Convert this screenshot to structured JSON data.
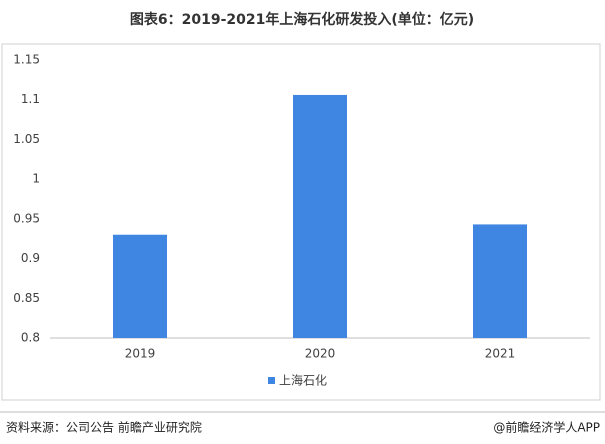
{
  "chart_data": {
    "type": "bar",
    "title": "图表6：2019-2021年上海石化研发投入(单位：亿元)",
    "categories": [
      "2019",
      "2020",
      "2021"
    ],
    "series": [
      {
        "name": "上海石化",
        "color": "#3f86e3",
        "values": [
          0.93,
          1.106,
          0.943
        ]
      }
    ],
    "ylim": [
      0.8,
      1.15
    ],
    "yticks": [
      0.8,
      0.85,
      0.9,
      0.95,
      1,
      1.05,
      1.1,
      1.15
    ],
    "legend": "bottom",
    "source": "资料来源：公司公告 前瞻产业研究院",
    "credit": "@前瞻经济学人APP"
  }
}
